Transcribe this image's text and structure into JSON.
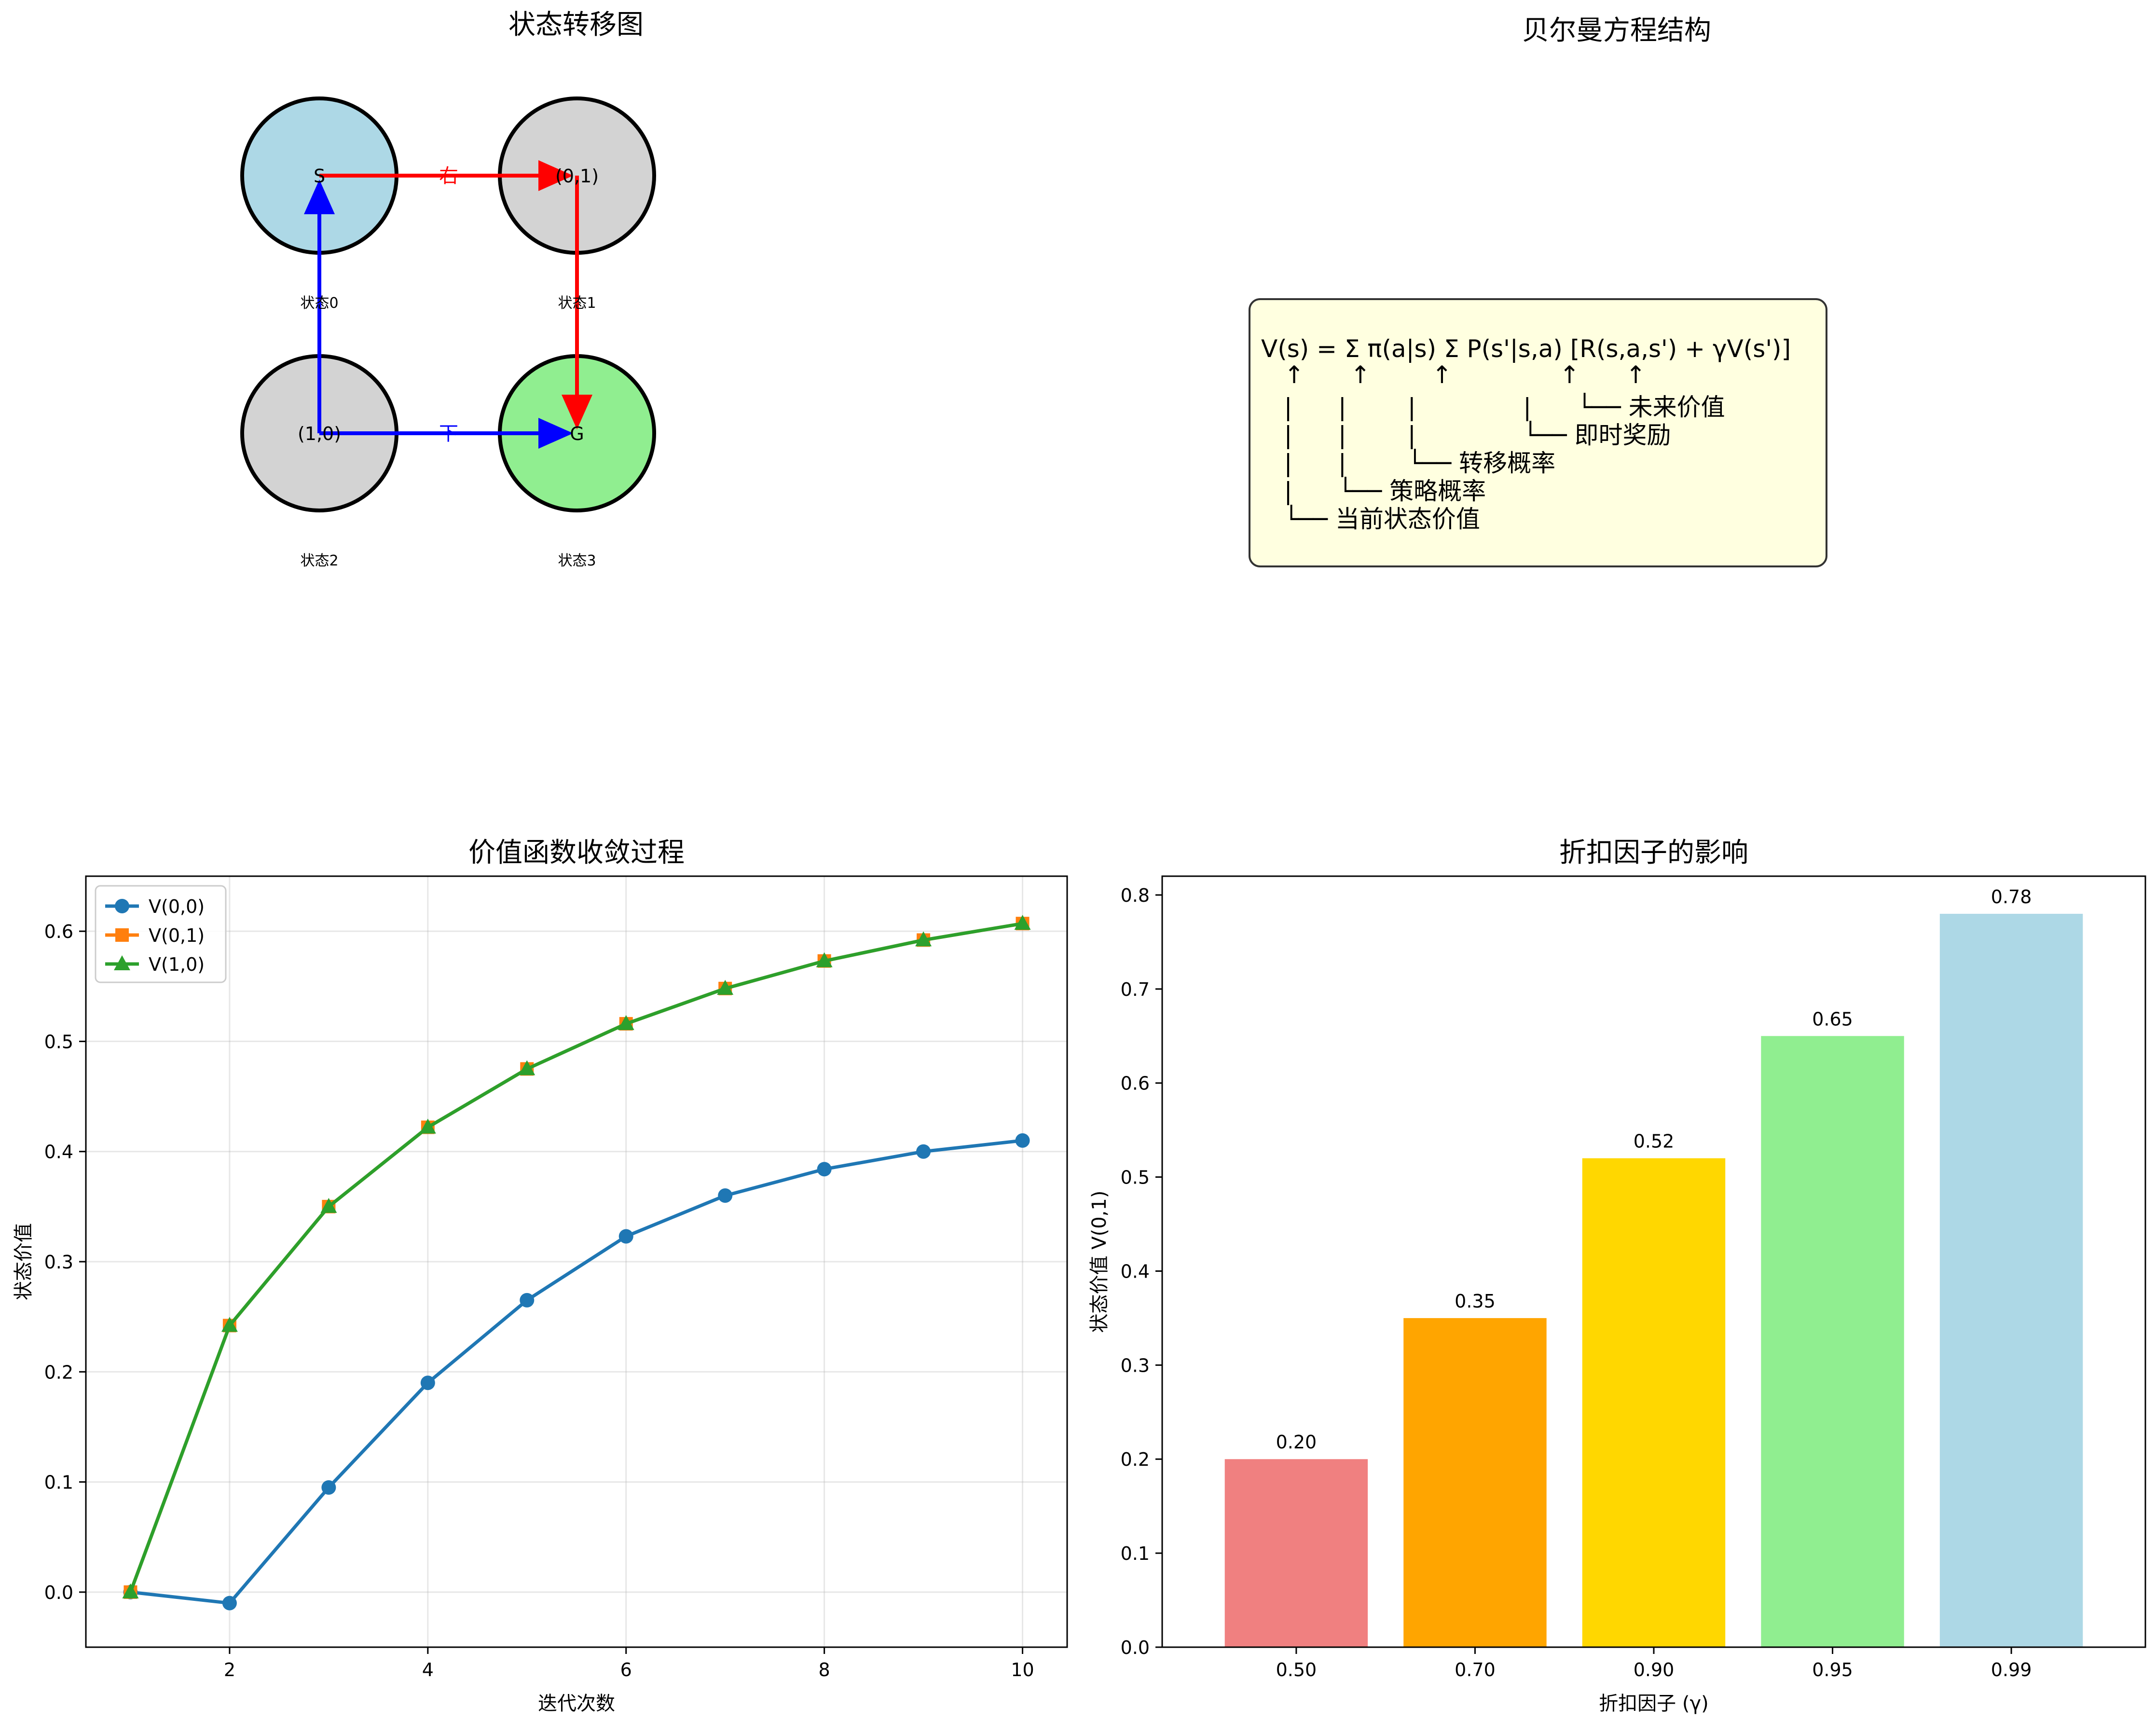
{
  "panels": {
    "transition": {
      "title": "状态转移图",
      "nodes": [
        {
          "label": "S",
          "caption": "状态0",
          "fill": "#add8e6"
        },
        {
          "label": "(0,1)",
          "caption": "状态1",
          "fill": "#d3d3d3"
        },
        {
          "label": "(1,0)",
          "caption": "状态2",
          "fill": "#d3d3d3"
        },
        {
          "label": "G",
          "caption": "状态3",
          "fill": "#90ee90"
        }
      ],
      "arrows": {
        "right_label": "右",
        "down_label": "下",
        "red_color": "#ff0000",
        "blue_color": "#0000ff"
      }
    },
    "bellman": {
      "title": "贝尔曼方程结构",
      "lines": [
        "V(s) = Σ π(a|s) Σ P(s'|s,a) [R(s,a,s') + γV(s')]",
        "   ↑      ↑        ↑              ↑      ↑",
        "   |      |        |              |      └── 未来价值",
        "   |      |        |              └── 即时奖励",
        "   |      |        └── 转移概率",
        "   |      └── 策略概率",
        "   └── 当前状态价值"
      ],
      "box_color": "#ffffe0"
    }
  },
  "chart_data": [
    {
      "type": "line",
      "title": "价值函数收敛过程",
      "xlabel": "迭代次数",
      "ylabel": "状态价值",
      "x": [
        1,
        2,
        3,
        4,
        5,
        6,
        7,
        8,
        9,
        10
      ],
      "xlim": [
        0.55,
        10.45
      ],
      "ylim": [
        -0.05,
        0.65
      ],
      "xticks": [
        "2",
        "4",
        "6",
        "8",
        "10"
      ],
      "yticks": [
        "0.0",
        "0.1",
        "0.2",
        "0.3",
        "0.4",
        "0.5",
        "0.6"
      ],
      "grid": true,
      "legend": "top-left",
      "series": [
        {
          "name": "V(0,0)",
          "color": "#1f77b4",
          "marker": "circle",
          "values": [
            0.0,
            -0.01,
            0.095,
            0.19,
            0.265,
            0.323,
            0.36,
            0.384,
            0.4,
            0.41
          ]
        },
        {
          "name": "V(0,1)",
          "color": "#ff7f0e",
          "marker": "square",
          "values": [
            0.0,
            0.242,
            0.35,
            0.422,
            0.475,
            0.516,
            0.548,
            0.573,
            0.592,
            0.607
          ]
        },
        {
          "name": "V(1,0)",
          "color": "#2ca02c",
          "marker": "triangle",
          "values": [
            0.0,
            0.242,
            0.35,
            0.422,
            0.475,
            0.516,
            0.548,
            0.573,
            0.592,
            0.607
          ]
        }
      ]
    },
    {
      "type": "bar",
      "title": "折扣因子的影响",
      "xlabel": "折扣因子 (γ)",
      "ylabel": "状态价值 V(0,1)",
      "categories": [
        "0.50",
        "0.70",
        "0.90",
        "0.95",
        "0.99"
      ],
      "values": [
        0.2,
        0.35,
        0.52,
        0.65,
        0.78
      ],
      "value_labels": [
        "0.20",
        "0.35",
        "0.52",
        "0.65",
        "0.78"
      ],
      "colors": [
        "#f08080",
        "#ffa500",
        "#ffd700",
        "#90ee90",
        "#add8e6"
      ],
      "ylim": [
        0,
        0.82
      ],
      "yticks": [
        "0.0",
        "0.1",
        "0.2",
        "0.3",
        "0.4",
        "0.5",
        "0.6",
        "0.7",
        "0.8"
      ],
      "grid": false
    }
  ]
}
